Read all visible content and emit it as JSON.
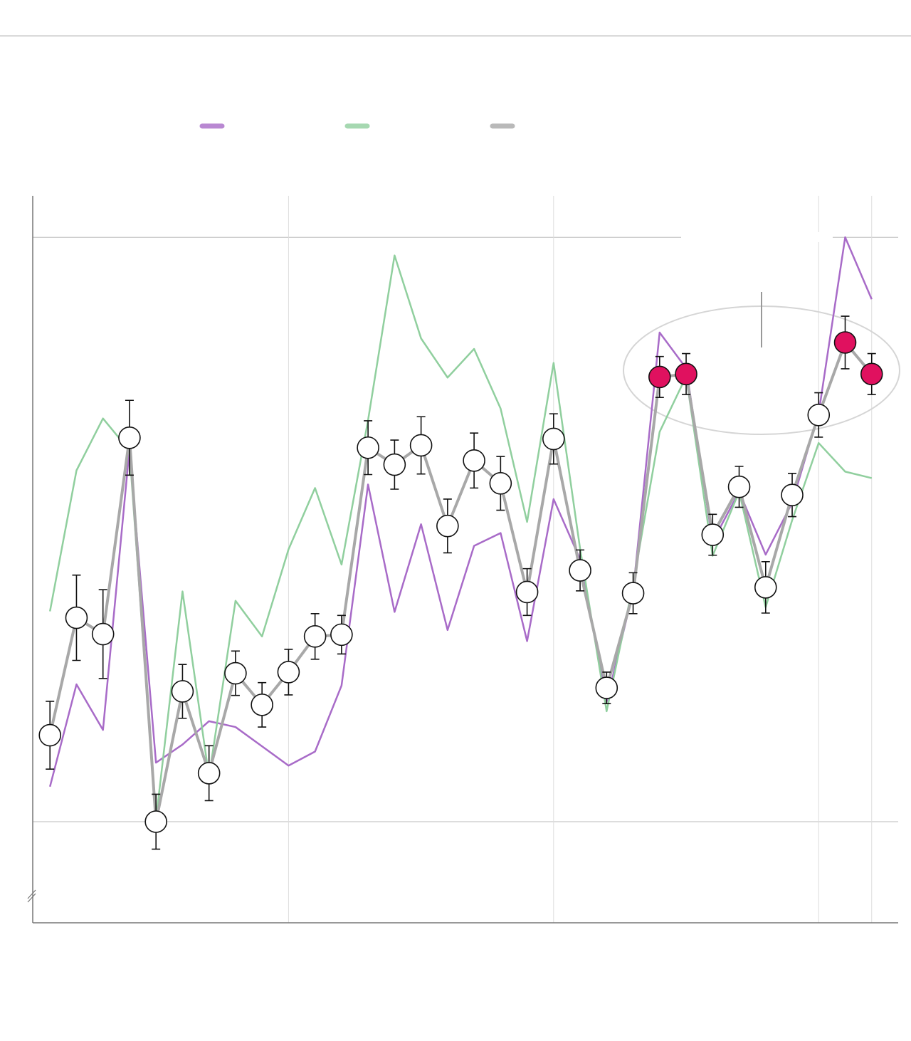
{
  "chart_data": {
    "type": "line",
    "x": [
      0,
      1,
      2,
      3,
      4,
      5,
      6,
      7,
      8,
      9,
      10,
      11,
      12,
      13,
      14,
      15,
      16,
      17,
      18,
      19,
      20,
      21,
      22,
      23,
      24,
      25,
      26,
      27,
      28,
      29,
      30,
      31
    ],
    "xlim": [
      -0.65,
      32.0
    ],
    "xticks": [
      9,
      19,
      29,
      31
    ],
    "ylim": [
      -17.3,
      107.1
    ],
    "yticks": [
      0,
      100
    ],
    "grid": true,
    "series": [
      {
        "color": "#a86bc8",
        "values": [
          6,
          23.5,
          15.7,
          63.8,
          10.1,
          13.2,
          17.2,
          16.2,
          12.9,
          9.6,
          12,
          23.3,
          57.7,
          35.9,
          50.9,
          32.8,
          47.2,
          49.4,
          30.9,
          55.2,
          44.9,
          20.5,
          39.4,
          83.7,
          77.6,
          47.9,
          56.5,
          45.7,
          54.6,
          69.9,
          100,
          89.4
        ]
      },
      {
        "color": "#90cf9e",
        "values": [
          36,
          60.1,
          69,
          63.5,
          0.4,
          39.4,
          7.7,
          37.8,
          31.7,
          46.6,
          57.1,
          44,
          68.7,
          96.9,
          82.7,
          76,
          80.9,
          70.7,
          51.3,
          78.5,
          46.7,
          18.9,
          40.6,
          66.7,
          76.2,
          45.5,
          56.5,
          36.7,
          51.6,
          64.8,
          59.9,
          58.8
        ]
      },
      {
        "color": "#a8a8a8",
        "values": [
          14.8,
          34.9,
          32.1,
          65.7,
          0,
          22.3,
          8.3,
          25.4,
          20,
          25.6,
          31.7,
          32,
          64,
          61.1,
          64.4,
          50.6,
          61.8,
          57.9,
          39.3,
          65.5,
          43,
          22.9,
          39.1,
          76.1,
          76.6,
          49.1,
          57.3,
          40.1,
          55.9,
          69.6,
          82,
          76.6
        ],
        "errors": [
          5.8,
          7.3,
          7.6,
          6.4,
          4.7,
          4.6,
          4.7,
          3.8,
          3.8,
          3.9,
          3.9,
          3.3,
          4.6,
          4.2,
          4.9,
          4.6,
          4.7,
          4.6,
          4,
          4.3,
          3.5,
          2.7,
          3.5,
          3.5,
          3.5,
          3.5,
          3.5,
          4.4,
          3.7,
          3.8,
          4.5,
          3.5
        ],
        "highlight": [
          23,
          24,
          30,
          31
        ],
        "highlight_color": "#e0115f"
      }
    ]
  }
}
